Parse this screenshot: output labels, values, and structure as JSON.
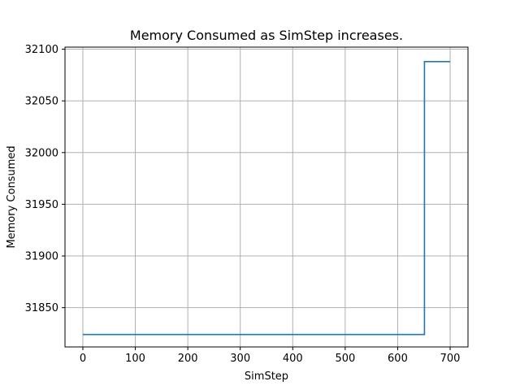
{
  "chart_data": {
    "type": "line",
    "title": "Memory Consumed as SimStep increases.",
    "xlabel": "SimStep",
    "ylabel": "Memory Consumed",
    "xlim": [
      -34,
      734
    ],
    "ylim": [
      31812,
      32102
    ],
    "xticks": [
      0,
      100,
      200,
      300,
      400,
      500,
      600,
      700
    ],
    "yticks": [
      31850,
      31900,
      31950,
      32000,
      32050,
      32100
    ],
    "grid": true,
    "series": [
      {
        "color": "#1f77b4",
        "points": [
          [
            0,
            31824
          ],
          [
            651,
            31824
          ],
          [
            651,
            32088
          ],
          [
            700,
            32088
          ]
        ]
      }
    ]
  }
}
